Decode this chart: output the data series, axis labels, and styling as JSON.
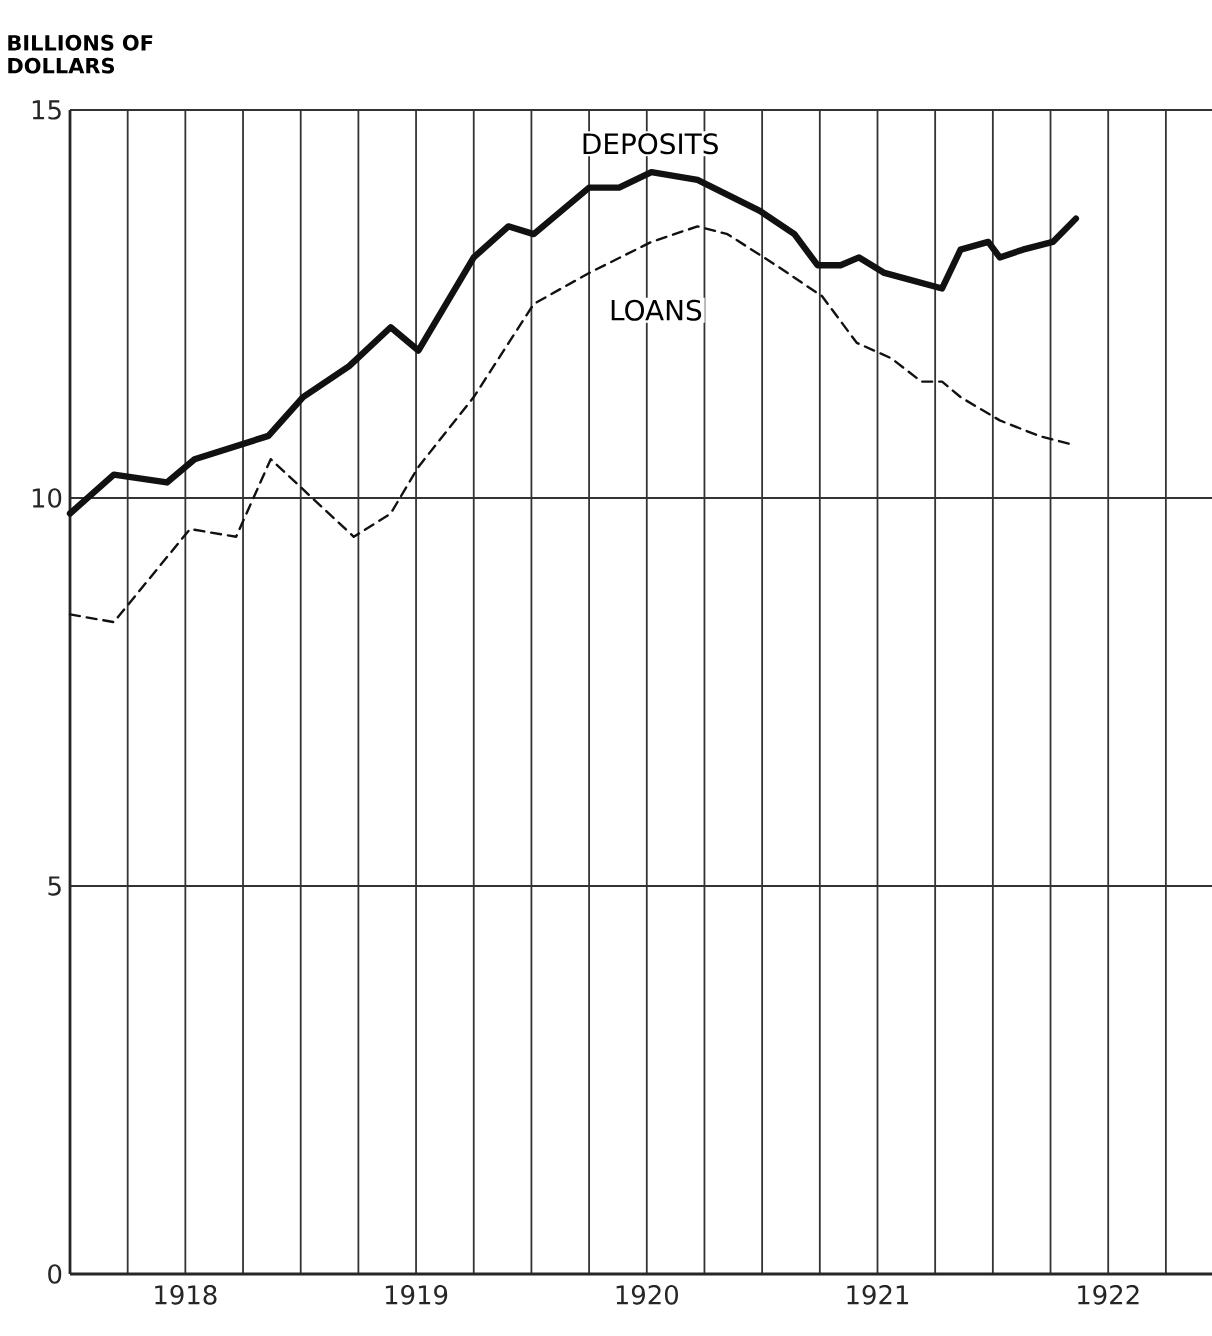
{
  "chart_data": {
    "type": "line",
    "ylabel": "BILLIONS OF DOLLARS",
    "xlim": [
      1918,
      1922.95
    ],
    "ylim": [
      0,
      15
    ],
    "xticks": [
      {
        "value": 1918.25,
        "label": null
      },
      {
        "value": 1918.5,
        "label": "1918"
      },
      {
        "value": 1918.75,
        "label": null
      },
      {
        "value": 1919,
        "label": null
      },
      {
        "value": 1919.25,
        "label": null
      },
      {
        "value": 1919.5,
        "label": "1919"
      },
      {
        "value": 1919.75,
        "label": null
      },
      {
        "value": 1920,
        "label": null
      },
      {
        "value": 1920.25,
        "label": null
      },
      {
        "value": 1920.5,
        "label": "1920"
      },
      {
        "value": 1920.75,
        "label": null
      },
      {
        "value": 1921,
        "label": null
      },
      {
        "value": 1921.25,
        "label": null
      },
      {
        "value": 1921.5,
        "label": "1921"
      },
      {
        "value": 1921.75,
        "label": null
      },
      {
        "value": 1922,
        "label": null
      },
      {
        "value": 1922.25,
        "label": null
      },
      {
        "value": 1922.5,
        "label": "1922"
      },
      {
        "value": 1922.75,
        "label": null
      }
    ],
    "yticks": [
      0,
      5,
      10,
      15
    ],
    "grid": true,
    "marker": "none",
    "series": [
      {
        "color": "#111111",
        "line_style": "solid",
        "x": [
          1918.0,
          1918.19,
          1918.42,
          1918.54,
          1918.86,
          1919.01,
          1919.21,
          1919.39,
          1919.51,
          1919.75,
          1919.9,
          1920.01,
          1920.25,
          1920.38,
          1920.52,
          1920.72,
          1920.99,
          1921.14,
          1921.24,
          1921.34,
          1921.42,
          1921.53,
          1921.78,
          1921.86,
          1921.98,
          1922.03,
          1922.13,
          1922.26,
          1922.36
        ],
        "values": [
          9.8,
          10.3,
          10.2,
          10.5,
          10.8,
          11.3,
          11.7,
          12.2,
          11.9,
          13.1,
          13.5,
          13.4,
          14.0,
          14.0,
          14.2,
          14.1,
          13.7,
          13.4,
          13.0,
          13.0,
          13.1,
          12.9,
          12.7,
          13.2,
          13.3,
          13.1,
          13.2,
          13.3,
          13.6
        ]
      },
      {
        "color": "#111111",
        "line_style": "dashed",
        "x": [
          1918.0,
          1918.19,
          1918.52,
          1918.72,
          1918.87,
          1919.23,
          1919.39,
          1919.51,
          1919.75,
          1920.01,
          1920.25,
          1920.52,
          1920.72,
          1920.85,
          1921.06,
          1921.26,
          1921.41,
          1921.56,
          1921.69,
          1921.78,
          1921.86,
          1922.03,
          1922.2,
          1922.33
        ],
        "values": [
          8.5,
          8.4,
          9.6,
          9.5,
          10.5,
          9.5,
          9.8,
          10.4,
          11.3,
          12.5,
          12.9,
          13.3,
          13.5,
          13.4,
          13.0,
          12.6,
          12.0,
          11.8,
          11.5,
          11.5,
          11.3,
          11.0,
          10.8,
          10.7
        ]
      }
    ],
    "annotations": [
      "DEPOSITS",
      "LOANS"
    ]
  }
}
